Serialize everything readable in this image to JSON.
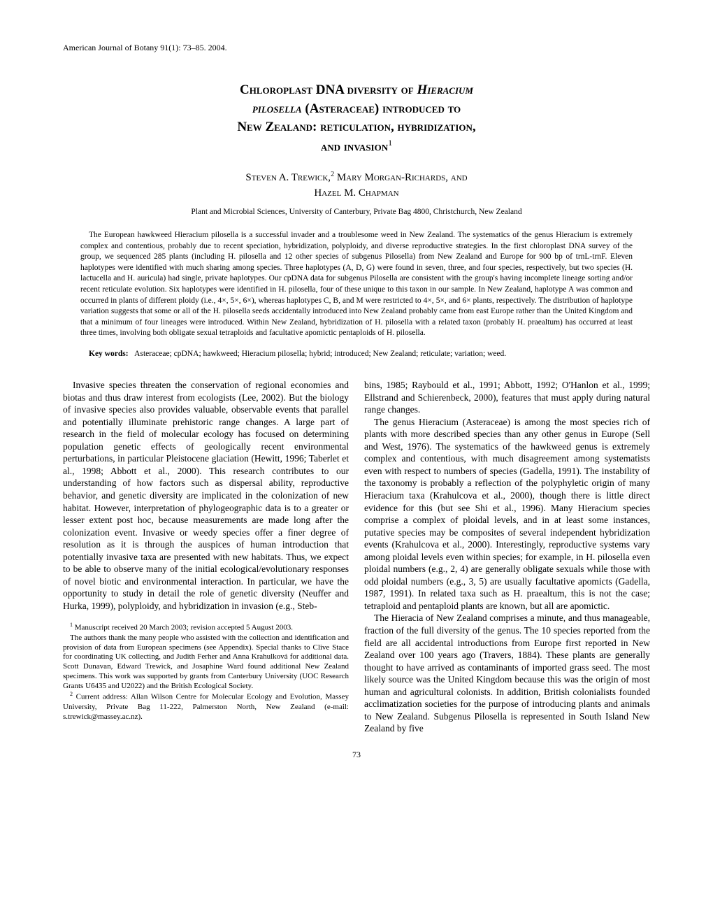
{
  "journal_header": "American Journal of Botany 91(1): 73–85. 2004.",
  "title_line1_caps": "Chloroplast DNA diversity of ",
  "title_line1_italic": "Hieracium",
  "title_line2_italic": "pilosella",
  "title_line2_caps": " (Asteraceae) introduced to",
  "title_line3": "New Zealand: reticulation, hybridization,",
  "title_line4": "and invasion",
  "title_sup": "1",
  "authors_line1": "Steven A. Trewick,",
  "authors_sup1": "2",
  "authors_line1_cont": " Mary Morgan-Richards, and",
  "authors_line2": "Hazel M. Chapman",
  "affiliation": "Plant and Microbial Sciences, University of Canterbury, Private Bag 4800, Christchurch, New Zealand",
  "abstract": "The European hawkweed Hieracium pilosella is a successful invader and a troublesome weed in New Zealand. The systematics of the genus Hieracium is extremely complex and contentious, probably due to recent speciation, hybridization, polyploidy, and diverse reproductive strategies. In the first chloroplast DNA survey of the group, we sequenced 285 plants (including H. pilosella and 12 other species of subgenus Pilosella) from New Zealand and Europe for 900 bp of trnL-trnF. Eleven haplotypes were identified with much sharing among species. Three haplotypes (A, D, G) were found in seven, three, and four species, respectively, but two species (H. lactucella and H. auricula) had single, private haplotypes. Our cpDNA data for subgenus Pilosella are consistent with the group's having incomplete lineage sorting and/or recent reticulate evolution. Six haplotypes were identified in H. pilosella, four of these unique to this taxon in our sample. In New Zealand, haplotype A was common and occurred in plants of different ploidy (i.e., 4×, 5×, 6×), whereas haplotypes C, B, and M were restricted to 4×, 5×, and 6× plants, respectively. The distribution of haplotype variation suggests that some or all of the H. pilosella seeds accidentally introduced into New Zealand probably came from east Europe rather than the United Kingdom and that a minimum of four lineages were introduced. Within New Zealand, hybridization of H. pilosella with a related taxon (probably H. praealtum) has occurred at least three times, involving both obligate sexual tetraploids and facultative apomictic pentaploids of H. pilosella.",
  "keywords_label": "Key words:",
  "keywords_text": "Asteraceae; cpDNA; hawkweed; Hieracium pilosella; hybrid; introduced; New Zealand; reticulate; variation; weed.",
  "body_p1": "Invasive species threaten the conservation of regional economies and biotas and thus draw interest from ecologists (Lee, 2002). But the biology of invasive species also provides valuable, observable events that parallel and potentially illuminate prehistoric range changes. A large part of research in the field of molecular ecology has focused on determining population genetic effects of geologically recent environmental perturbations, in particular Pleistocene glaciation (Hewitt, 1996; Taberlet et al., 1998; Abbott et al., 2000). This research contributes to our understanding of how factors such as dispersal ability, reproductive behavior, and genetic diversity are implicated in the colonization of new habitat. However, interpretation of phylogeographic data is to a greater or lesser extent post hoc, because measurements are made long after the colonization event. Invasive or weedy species offer a finer degree of resolution as it is through the auspices of human introduction that potentially invasive taxa are presented with new habitats. Thus, we expect to be able to observe many of the initial ecological/evolutionary responses of novel biotic and environmental interaction. In particular, we have the opportunity to study in detail the role of genetic diversity (Neuffer and Hurka, 1999), polyploidy, and hybridization in invasion (e.g., Steb-",
  "footnote1_sup": "1",
  "footnote1": " Manuscript received 20 March 2003; revision accepted 5 August 2003.",
  "footnote_ack": "The authors thank the many people who assisted with the collection and identification and provision of data from European specimens (see Appendix). Special thanks to Clive Stace for coordinating UK collecting, and Judith Ferher and Anna Krahulková for additional data. Scott Dunavan, Edward Trewick, and Josaphine Ward found additional New Zealand specimens. This work was supported by grants from Canterbury University (UOC Research Grants U6435 and U2022) and the British Ecological Society.",
  "footnote2_sup": "2",
  "footnote2": " Current address: Allan Wilson Centre for Molecular Ecology and Evolution, Massey University, Private Bag 11-222, Palmerston North, New Zealand (e-mail: s.trewick@massey.ac.nz).",
  "body_p1_cont": "bins, 1985; Raybould et al., 1991; Abbott, 1992; O'Hanlon et al., 1999; Ellstrand and Schierenbeck, 2000), features that must apply during natural range changes.",
  "body_p2": "The genus Hieracium (Asteraceae) is among the most species rich of plants with more described species than any other genus in Europe (Sell and West, 1976). The systematics of the hawkweed genus is extremely complex and contentious, with much disagreement among systematists even with respect to numbers of species (Gadella, 1991). The instability of the taxonomy is probably a reflection of the polyphyletic origin of many Hieracium taxa (Krahulcova et al., 2000), though there is little direct evidence for this (but see Shi et al., 1996). Many Hieracium species comprise a complex of ploidal levels, and in at least some instances, putative species may be composites of several independent hybridization events (Krahulcova et al., 2000). Interestingly, reproductive systems vary among ploidal levels even within species; for example, in H. pilosella even ploidal numbers (e.g., 2, 4) are generally obligate sexuals while those with odd ploidal numbers (e.g., 3, 5) are usually facultative apomicts (Gadella, 1987, 1991). In related taxa such as H. praealtum, this is not the case; tetraploid and pentaploid plants are known, but all are apomictic.",
  "body_p3": "The Hieracia of New Zealand comprises a minute, and thus manageable, fraction of the full diversity of the genus. The 10 species reported from the field are all accidental introductions from Europe first reported in New Zealand over 100 years ago (Travers, 1884). These plants are generally thought to have arrived as contaminants of imported grass seed. The most likely source was the United Kingdom because this was the origin of most human and agricultural colonists. In addition, British colonialists founded acclimatization societies for the purpose of introducing plants and animals to New Zealand. Subgenus Pilosella is represented in South Island New Zealand by five",
  "page_number": "73"
}
